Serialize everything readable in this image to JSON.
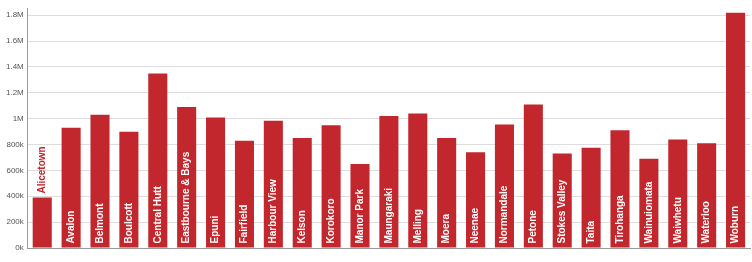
{
  "chart_data": {
    "type": "bar",
    "categories": [
      "Alicetown",
      "Avalon",
      "Belmont",
      "Boulcott",
      "Central Hutt",
      "Eastbourne & Bays",
      "Epuni",
      "Fairfield",
      "Harbour View",
      "Kelson",
      "Korokoro",
      "Manor Park",
      "Maungaraki",
      "Melling",
      "Moera",
      "Neenae",
      "Normandale",
      "Petone",
      "Stokes Valley",
      "Taita",
      "Tirohanga",
      "Wainuiomata",
      "Waiwhetu",
      "Waterloo",
      "Woburn"
    ],
    "values": [
      390000,
      930000,
      1030000,
      900000,
      1350000,
      1090000,
      1010000,
      830000,
      985000,
      850000,
      950000,
      650000,
      1020000,
      1040000,
      850000,
      740000,
      955000,
      1110000,
      730000,
      775000,
      910000,
      690000,
      840000,
      810000,
      1820000
    ],
    "color": "#c1272d",
    "ylim": [
      0,
      1850000
    ],
    "yticks": [
      {
        "value": 0,
        "label": "0k"
      },
      {
        "value": 200000,
        "label": "200k"
      },
      {
        "value": 400000,
        "label": "400k"
      },
      {
        "value": 600000,
        "label": "600k"
      },
      {
        "value": 800000,
        "label": "800k"
      },
      {
        "value": 1000000,
        "label": "1M"
      },
      {
        "value": 1200000,
        "label": "1.2M"
      },
      {
        "value": 1400000,
        "label": "1.4M"
      },
      {
        "value": 1600000,
        "label": "1.6M"
      },
      {
        "value": 1800000,
        "label": "1.8M"
      }
    ],
    "grid": true
  }
}
